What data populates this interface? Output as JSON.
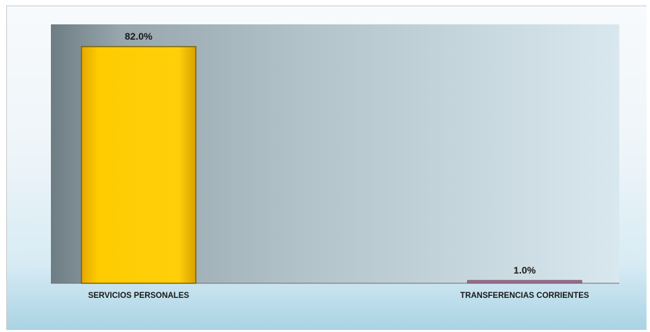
{
  "chart_data": {
    "type": "bar",
    "title": "",
    "xlabel": "",
    "ylabel": "",
    "categories": [
      "SERVICIOS PERSONALES",
      "TRANSFERENCIAS CORRIENTES"
    ],
    "values": [
      82.0,
      1.0
    ],
    "value_labels": [
      "82.0%",
      "1.0%"
    ],
    "ylim": [
      0,
      82
    ],
    "grid": false,
    "legend": "none",
    "colors": {
      "bar_fill": "#FFCC00",
      "bar_border": "#7a6200",
      "bar2_fill": "#9b6b8c",
      "plot_background_start": "#7f8e95",
      "plot_background_end": "#d6e5ec"
    }
  }
}
